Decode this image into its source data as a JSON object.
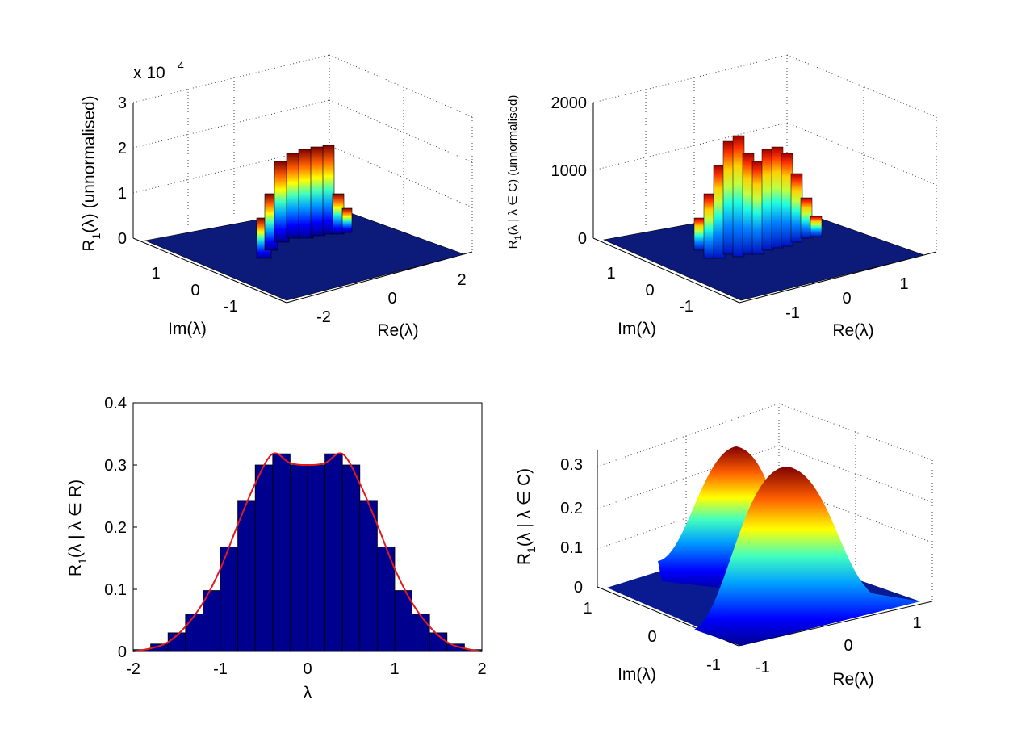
{
  "chart_data": [
    {
      "type": "bar3d",
      "panel": "top-left",
      "zlabel": "R",
      "zlabel_sub": "1",
      "zlabel_rest": "(λ) (unnormalised)",
      "exponent_label": "x 10",
      "exponent_power": "4",
      "ylabel": "Im(λ)",
      "xlabel": "Re(λ)",
      "zticks": [
        "0",
        "1",
        "2",
        "3"
      ],
      "xticks": [
        "-2",
        "0",
        "2"
      ],
      "yticks": [
        "1",
        "0",
        "-1"
      ],
      "zlim": [
        0,
        3
      ],
      "peak_value": 2.0,
      "peak_unit_multiplier": 10000
    },
    {
      "type": "bar3d",
      "panel": "top-right",
      "zlabel": "R",
      "zlabel_sub": "1",
      "zlabel_rest": "(λ | λ ∈ C) (unnormalised)",
      "ylabel": "Im(λ)",
      "xlabel": "Re(λ)",
      "zticks": [
        "0",
        "1000",
        "2000"
      ],
      "xticks": [
        "-1",
        "0",
        "1"
      ],
      "yticks": [
        "1",
        "0",
        "-1"
      ],
      "zlim": [
        0,
        2000
      ],
      "peak_value": 1500
    },
    {
      "type": "bar",
      "panel": "bottom-left",
      "ylabel": "R",
      "ylabel_sub": "1",
      "ylabel_rest": "(λ | λ ∈ R)",
      "xlabel": "λ",
      "xlim": [
        -2,
        2
      ],
      "ylim": [
        0,
        0.4
      ],
      "xticks": [
        "-2",
        "-1",
        "0",
        "1",
        "2"
      ],
      "yticks": [
        "0",
        "0.1",
        "0.2",
        "0.3",
        "0.4"
      ],
      "bin_edges": [
        -2.0,
        -1.8,
        -1.6,
        -1.4,
        -1.2,
        -1.0,
        -0.8,
        -0.6,
        -0.4,
        -0.2,
        0.0,
        0.2,
        0.4,
        0.6,
        0.8,
        1.0,
        1.2,
        1.4,
        1.6,
        1.8,
        2.0
      ],
      "values": [
        0.003,
        0.012,
        0.03,
        0.06,
        0.098,
        0.168,
        0.243,
        0.3,
        0.318,
        0.3,
        0.3,
        0.318,
        0.3,
        0.243,
        0.168,
        0.098,
        0.06,
        0.03,
        0.012,
        0.003
      ],
      "curve": {
        "x": [
          -2.0,
          -1.8,
          -1.6,
          -1.4,
          -1.2,
          -1.0,
          -0.8,
          -0.6,
          -0.4,
          -0.2,
          0.0,
          0.2,
          0.4,
          0.6,
          0.8,
          1.0,
          1.2,
          1.4,
          1.6,
          1.8,
          2.0
        ],
        "y": [
          0.0,
          0.005,
          0.015,
          0.04,
          0.078,
          0.133,
          0.204,
          0.27,
          0.318,
          0.303,
          0.3,
          0.303,
          0.318,
          0.27,
          0.204,
          0.133,
          0.078,
          0.04,
          0.015,
          0.005,
          0.0
        ]
      },
      "bar_color": "#00008f",
      "curve_color": "#e31a1c"
    },
    {
      "type": "surface",
      "panel": "bottom-right",
      "zlabel": "R",
      "zlabel_sub": "1",
      "zlabel_rest": "(λ | λ ∈ C)",
      "ylabel": "Im(λ)",
      "xlabel": "Re(λ)",
      "zticks": [
        "0",
        "0.1",
        "0.2",
        "0.3"
      ],
      "xticks": [
        "-1",
        "0",
        "1"
      ],
      "yticks": [
        "1",
        "0",
        "-1"
      ],
      "zlim": [
        0,
        0.33
      ],
      "peak_value": 0.33
    }
  ]
}
